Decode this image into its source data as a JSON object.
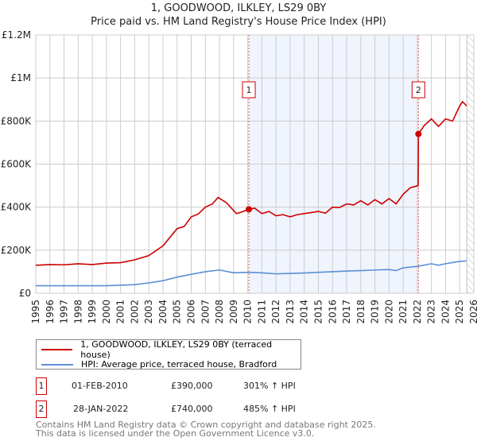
{
  "title": "1, GOODWOOD, ILKLEY, LS29 0BY",
  "subtitle": "Price paid vs. HM Land Registry's House Price Index (HPI)",
  "chart_data": {
    "type": "line",
    "xlim": [
      1995,
      2026
    ],
    "ylim": [
      0,
      1200000
    ],
    "y_ticks": [
      {
        "v": 0,
        "label": "£0"
      },
      {
        "v": 200000,
        "label": "£200K"
      },
      {
        "v": 400000,
        "label": "£400K"
      },
      {
        "v": 600000,
        "label": "£600K"
      },
      {
        "v": 800000,
        "label": "£800K"
      },
      {
        "v": 1000000,
        "label": "£1M"
      },
      {
        "v": 1200000,
        "label": "£1.2M"
      }
    ],
    "x_ticks": [
      "1995",
      "1996",
      "1997",
      "1998",
      "1999",
      "2000",
      "2001",
      "2002",
      "2003",
      "2004",
      "2005",
      "2006",
      "2007",
      "2008",
      "2009",
      "2010",
      "2011",
      "2012",
      "2013",
      "2014",
      "2015",
      "2016",
      "2017",
      "2018",
      "2019",
      "2020",
      "2021",
      "2022",
      "2023",
      "2024",
      "2025",
      "2026"
    ],
    "grid": true,
    "shaded_range": [
      2010.08,
      2022.08
    ],
    "forecast_hatch_from": 2025.5,
    "series": [
      {
        "name": "1, GOODWOOD, ILKLEY, LS29 0BY (terraced house)",
        "color": "#cc0000",
        "points": [
          [
            1995,
            130000
          ],
          [
            1996,
            133000
          ],
          [
            1997,
            132000
          ],
          [
            1998,
            137000
          ],
          [
            1999,
            133000
          ],
          [
            2000,
            140000
          ],
          [
            2001,
            142000
          ],
          [
            2002,
            155000
          ],
          [
            2003,
            175000
          ],
          [
            2004,
            220000
          ],
          [
            2005,
            300000
          ],
          [
            2005.5,
            310000
          ],
          [
            2006,
            355000
          ],
          [
            2006.5,
            368000
          ],
          [
            2007,
            400000
          ],
          [
            2007.5,
            415000
          ],
          [
            2007.9,
            445000
          ],
          [
            2008.5,
            420000
          ],
          [
            2009.2,
            370000
          ],
          [
            2009.6,
            378000
          ],
          [
            2010.08,
            390000
          ],
          [
            2010.5,
            395000
          ],
          [
            2011,
            370000
          ],
          [
            2011.5,
            380000
          ],
          [
            2012,
            360000
          ],
          [
            2012.5,
            365000
          ],
          [
            2013,
            355000
          ],
          [
            2013.5,
            365000
          ],
          [
            2014,
            370000
          ],
          [
            2014.5,
            375000
          ],
          [
            2015,
            380000
          ],
          [
            2015.5,
            372000
          ],
          [
            2016,
            400000
          ],
          [
            2016.5,
            398000
          ],
          [
            2017,
            415000
          ],
          [
            2017.5,
            410000
          ],
          [
            2018,
            430000
          ],
          [
            2018.5,
            410000
          ],
          [
            2019,
            435000
          ],
          [
            2019.5,
            415000
          ],
          [
            2020,
            440000
          ],
          [
            2020.5,
            415000
          ],
          [
            2021,
            460000
          ],
          [
            2021.5,
            490000
          ],
          [
            2022.06,
            500000
          ],
          [
            2022.08,
            740000
          ],
          [
            2022.5,
            780000
          ],
          [
            2023,
            810000
          ],
          [
            2023.5,
            775000
          ],
          [
            2024,
            810000
          ],
          [
            2024.5,
            800000
          ],
          [
            2025,
            870000
          ],
          [
            2025.2,
            890000
          ],
          [
            2025.5,
            870000
          ]
        ]
      },
      {
        "name": "HPI: Average price, terraced house, Bradford",
        "color": "#5b8fd4",
        "points": [
          [
            1995,
            35000
          ],
          [
            2000,
            35000
          ],
          [
            2001,
            37000
          ],
          [
            2002,
            40000
          ],
          [
            2003,
            48000
          ],
          [
            2004,
            58000
          ],
          [
            2005,
            75000
          ],
          [
            2006,
            88000
          ],
          [
            2007,
            100000
          ],
          [
            2008,
            108000
          ],
          [
            2009,
            95000
          ],
          [
            2010,
            97000
          ],
          [
            2011,
            95000
          ],
          [
            2012,
            90000
          ],
          [
            2013,
            92000
          ],
          [
            2014,
            94000
          ],
          [
            2015,
            97000
          ],
          [
            2016,
            100000
          ],
          [
            2017,
            103000
          ],
          [
            2018,
            105000
          ],
          [
            2019,
            108000
          ],
          [
            2020,
            110000
          ],
          [
            2020.5,
            105000
          ],
          [
            2021,
            118000
          ],
          [
            2022,
            125000
          ],
          [
            2023,
            137000
          ],
          [
            2023.5,
            130000
          ],
          [
            2024,
            137000
          ],
          [
            2025,
            148000
          ],
          [
            2025.5,
            150000
          ]
        ]
      }
    ],
    "annotations": [
      {
        "label": "1",
        "x": 2010.08,
        "y": 390000
      },
      {
        "label": "2",
        "x": 2022.08,
        "y": 740000
      }
    ]
  },
  "transactions": [
    {
      "num": "1",
      "date": "01-FEB-2010",
      "price": "£390,000",
      "hpi": "301% ↑ HPI"
    },
    {
      "num": "2",
      "date": "28-JAN-2022",
      "price": "£740,000",
      "hpi": "485% ↑ HPI"
    }
  ],
  "footer": [
    "Contains HM Land Registry data © Crown copyright and database right 2025.",
    "This data is licensed under the Open Government Licence v3.0."
  ]
}
